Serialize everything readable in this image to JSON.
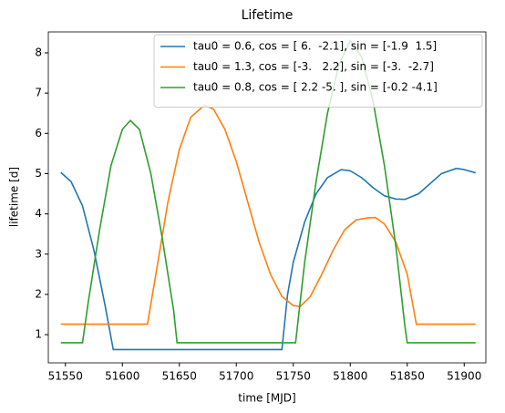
{
  "chart_data": {
    "type": "line",
    "title": "Lifetime",
    "xlabel": "time [MJD]",
    "ylabel": "lifetime [d]",
    "xlim": [
      51535,
      51919
    ],
    "ylim": [
      0.3,
      8.52
    ],
    "xticks": [
      51550,
      51600,
      51650,
      51700,
      51750,
      51800,
      51850,
      51900
    ],
    "yticks": [
      1,
      2,
      3,
      4,
      5,
      6,
      7,
      8
    ],
    "legend": "upper right",
    "series": [
      {
        "name": "tau0 = 0.6, cos = [ 6.  -2.1], sin = [-1.9  1.5]",
        "color": "#1f77b4",
        "x": [
          51546,
          51555,
          51565,
          51575,
          51585,
          51592,
          51740,
          51745,
          51750,
          51760,
          51770,
          51780,
          51792,
          51800,
          51810,
          51820,
          51830,
          51840,
          51848,
          51860,
          51870,
          51880,
          51893,
          51900,
          51910
        ],
        "values": [
          5.03,
          4.8,
          4.2,
          3.1,
          1.7,
          0.63,
          0.63,
          2.0,
          2.8,
          3.8,
          4.5,
          4.9,
          5.1,
          5.07,
          4.9,
          4.65,
          4.45,
          4.37,
          4.36,
          4.5,
          4.75,
          5.0,
          5.13,
          5.1,
          5.02
        ]
      },
      {
        "name": "tau0 = 1.3, cos = [-3.   2.2], sin = [-3.  -2.7]",
        "color": "#ff7f0e",
        "x": [
          51546,
          51622,
          51630,
          51640,
          51650,
          51660,
          51672,
          51680,
          51690,
          51700,
          51710,
          51720,
          51730,
          51740,
          51750,
          51756,
          51765,
          51775,
          51785,
          51795,
          51805,
          51815,
          51822,
          51830,
          51840,
          51850,
          51858,
          51910
        ],
        "values": [
          1.26,
          1.26,
          2.6,
          4.3,
          5.6,
          6.4,
          6.7,
          6.6,
          6.1,
          5.3,
          4.3,
          3.3,
          2.5,
          1.95,
          1.72,
          1.7,
          1.95,
          2.5,
          3.1,
          3.6,
          3.85,
          3.9,
          3.91,
          3.75,
          3.3,
          2.5,
          1.26,
          1.26
        ]
      },
      {
        "name": "tau0 = 0.8, cos = [ 2.2 -5. ], sin = [-0.2 -4.1]",
        "color": "#2ca02c",
        "x": [
          51546,
          51565,
          51570,
          51580,
          51590,
          51600,
          51607,
          51615,
          51625,
          51635,
          51645,
          51648,
          51752,
          51760,
          51770,
          51780,
          51790,
          51800,
          51810,
          51820,
          51830,
          51840,
          51848,
          51850,
          51910
        ],
        "values": [
          0.8,
          0.8,
          1.8,
          3.6,
          5.2,
          6.1,
          6.32,
          6.1,
          5.0,
          3.4,
          1.6,
          0.8,
          0.8,
          2.8,
          4.8,
          6.5,
          7.7,
          8.3,
          7.9,
          6.8,
          5.2,
          3.2,
          1.2,
          0.8,
          0.8
        ]
      }
    ]
  }
}
